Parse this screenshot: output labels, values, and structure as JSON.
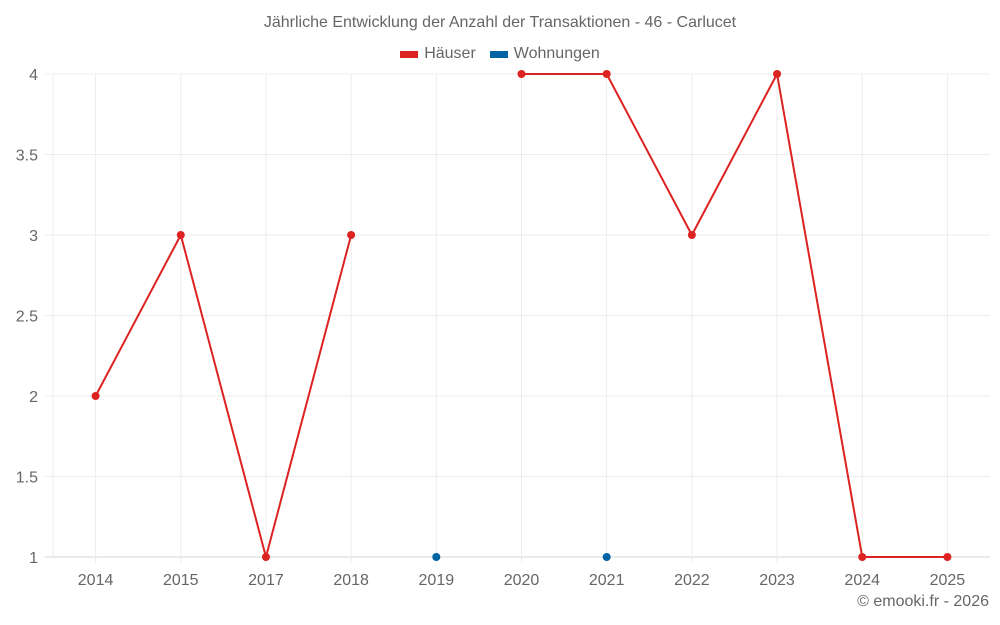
{
  "chart": {
    "title": "Jährliche Entwicklung der Anzahl der Transaktionen - 46 - Carlucet",
    "footer": "© emooki.fr - 2026"
  },
  "legend": [
    {
      "label": "Häuser",
      "color": "#dd2222"
    },
    {
      "label": "Wohnungen",
      "color": "#0063a6"
    }
  ],
  "chart_data": {
    "type": "line",
    "title": "Jährliche Entwicklung der Anzahl der Transaktionen - 46 - Carlucet",
    "xlabel": "",
    "ylabel": "",
    "categories": [
      "2014",
      "2015",
      "2017",
      "2018",
      "2019",
      "2020",
      "2021",
      "2022",
      "2023",
      "2024",
      "2025"
    ],
    "series": [
      {
        "name": "Häuser",
        "color": "#dd2222",
        "values": [
          2,
          3,
          1,
          3,
          null,
          4,
          4,
          3,
          4,
          1,
          1
        ]
      },
      {
        "name": "Wohnungen",
        "color": "#0063a6",
        "values": [
          null,
          null,
          null,
          null,
          1,
          null,
          1,
          null,
          null,
          null,
          null
        ]
      }
    ],
    "ylim": [
      1,
      4
    ],
    "yticks": [
      1,
      1.5,
      2,
      2.5,
      3,
      3.5,
      4
    ],
    "ytick_labels": [
      "1",
      "1.5",
      "2",
      "2.5",
      "3",
      "3.5",
      "4"
    ],
    "grid": true,
    "legend_position": "top"
  }
}
